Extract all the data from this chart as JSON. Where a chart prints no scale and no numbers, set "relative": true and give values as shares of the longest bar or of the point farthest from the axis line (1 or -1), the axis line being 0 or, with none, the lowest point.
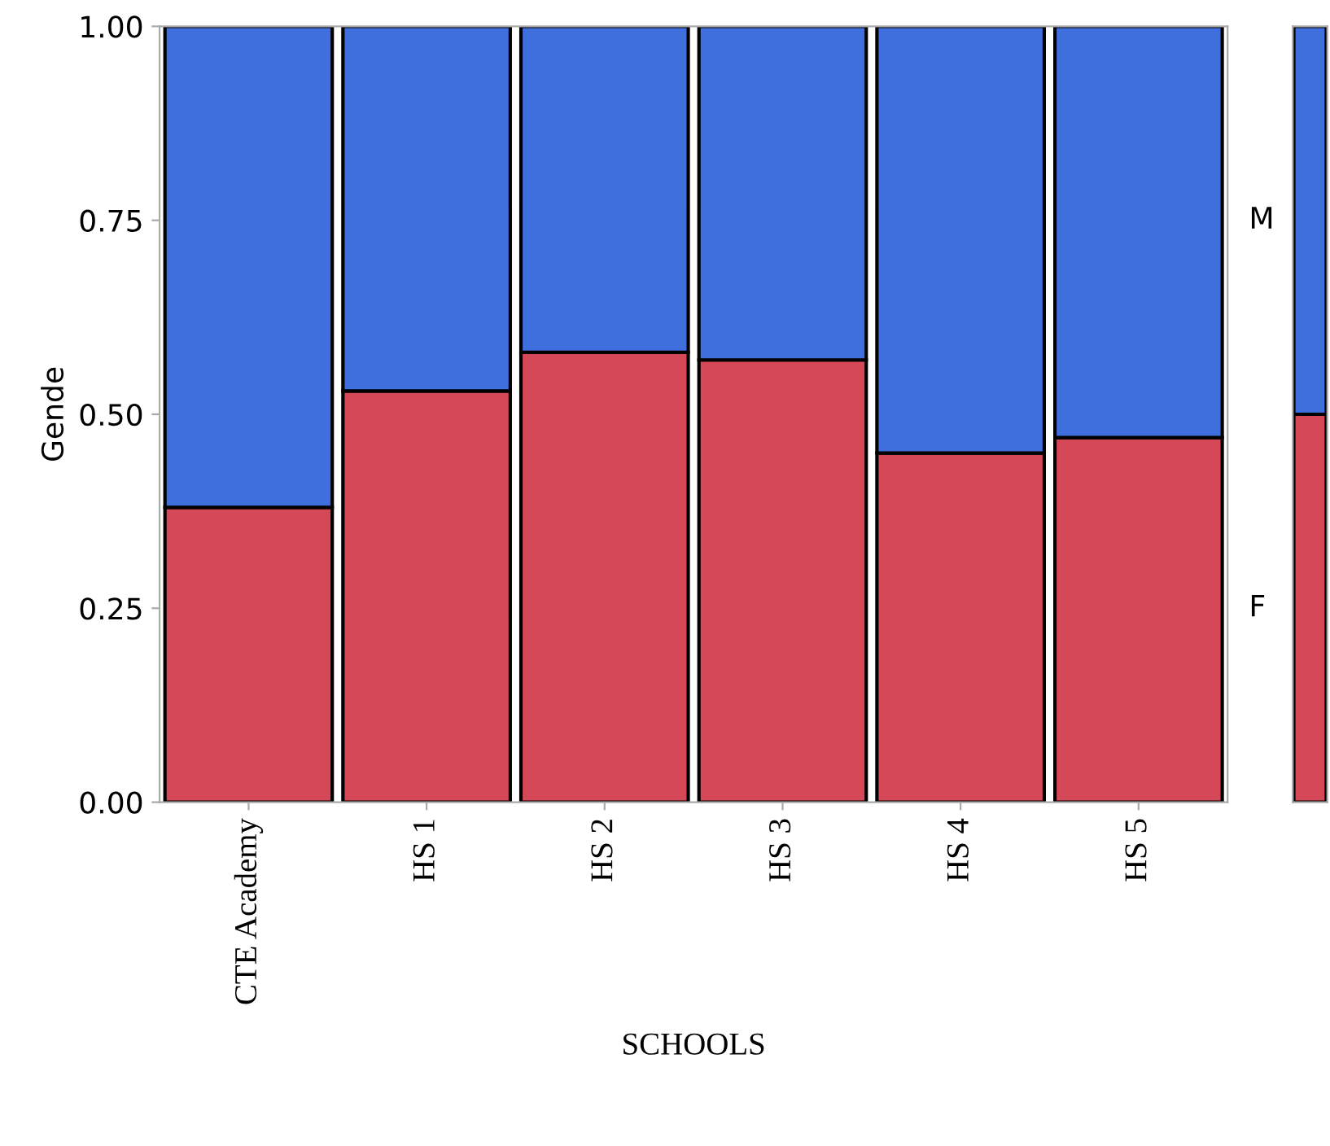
{
  "chart_data": [
    {
      "type": "bar",
      "stacked": true,
      "xlabel": "SCHOOLS",
      "ylabel": "Gende",
      "categories": [
        "CTE Academy",
        "HS 1",
        "HS 2",
        "HS 3",
        "HS 4",
        "HS 5"
      ],
      "series": [
        {
          "name": "F",
          "color": "#d54858",
          "values": [
            0.38,
            0.53,
            0.58,
            0.57,
            0.45,
            0.47
          ]
        },
        {
          "name": "M",
          "color": "#3f6fdd",
          "values": [
            0.62,
            0.47,
            0.42,
            0.43,
            0.55,
            0.53
          ]
        }
      ],
      "ylim": [
        0,
        1
      ],
      "yticks": [
        {
          "value": 0,
          "label": "0.00"
        },
        {
          "value": 0.25,
          "label": "0.25"
        },
        {
          "value": 0.5,
          "label": "0.50"
        },
        {
          "value": 0.75,
          "label": "0.75"
        },
        {
          "value": 1,
          "label": "1.00"
        }
      ],
      "grid": false,
      "legend": false
    },
    {
      "type": "bar",
      "stacked": true,
      "relative": true,
      "categories": [
        null
      ],
      "tick_labels": false,
      "series": [
        {
          "color": "#d54858",
          "values": [
            0.5
          ]
        },
        {
          "color": "#3f6fdd",
          "values": [
            0.5
          ]
        }
      ]
    }
  ]
}
